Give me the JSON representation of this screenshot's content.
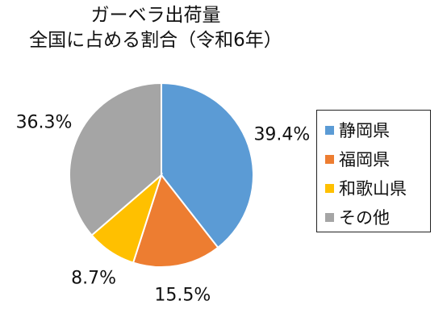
{
  "chart_data": {
    "type": "pie",
    "title_line1": "ガーベラ出荷量",
    "title_line2": "全国に占める割合（令和6年）",
    "categories": [
      "静岡県",
      "福岡県",
      "和歌山県",
      "その他"
    ],
    "values": [
      39.4,
      15.5,
      8.7,
      36.3
    ],
    "labels": [
      "39.4%",
      "15.5%",
      "8.7%",
      "36.3%"
    ],
    "colors": [
      "#5B9BD5",
      "#ED7D31",
      "#FFC000",
      "#A5A5A5"
    ],
    "start_angle_deg": 0,
    "direction": "clockwise",
    "legend_position": "right"
  }
}
